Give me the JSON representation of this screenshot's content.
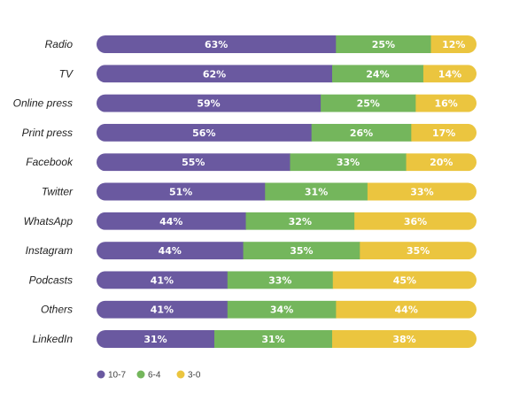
{
  "chart_data": {
    "type": "bar",
    "orientation": "horizontal",
    "stacked": true,
    "value_unit": "%",
    "categories": [
      "Radio",
      "TV",
      "Online press",
      "Print press",
      "Facebook",
      "Twitter",
      "WhatsApp",
      "Instagram",
      "Podcasts",
      "Others",
      "LinkedIn"
    ],
    "series": [
      {
        "name": "10-7",
        "color": "#6a59a0",
        "values": [
          63,
          62,
          59,
          56,
          55,
          51,
          44,
          44,
          41,
          41,
          31
        ]
      },
      {
        "name": "6-4",
        "color": "#74b65c",
        "values": [
          25,
          24,
          25,
          26,
          33,
          31,
          32,
          35,
          33,
          34,
          31
        ]
      },
      {
        "name": "3-0",
        "color": "#ebc53f",
        "values": [
          12,
          14,
          16,
          17,
          20,
          33,
          36,
          35,
          45,
          44,
          38
        ]
      }
    ],
    "legend_position": "bottom-left",
    "grid": false,
    "title": "",
    "xlabel": "",
    "ylabel": ""
  }
}
